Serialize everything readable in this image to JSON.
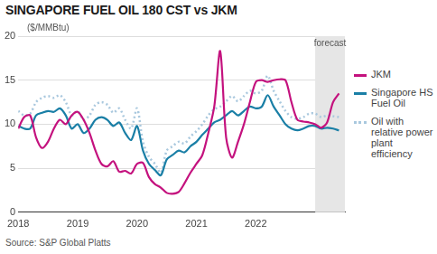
{
  "chart_data": {
    "type": "line",
    "title": "SINGAPORE FUEL OIL 180 CST vs JKM",
    "ylabel": "($/MMBtu)",
    "source": "Source: S&P Global Platts",
    "x": [
      2018.0,
      2018.1,
      2018.2,
      2018.3,
      2018.4,
      2018.5,
      2018.6,
      2018.7,
      2018.8,
      2018.9,
      2019.0,
      2019.1,
      2019.2,
      2019.3,
      2019.4,
      2019.5,
      2019.6,
      2019.7,
      2019.8,
      2019.9,
      2020.0,
      2020.1,
      2020.2,
      2020.3,
      2020.4,
      2020.5,
      2020.6,
      2020.7,
      2020.8,
      2020.9,
      2021.0,
      2021.1,
      2021.2,
      2021.3,
      2021.4,
      2021.5,
      2021.6,
      2021.7,
      2021.8,
      2021.9,
      2022.0,
      2022.1,
      2022.2,
      2022.3,
      2022.4,
      2022.5,
      2022.6,
      2022.7,
      2022.8,
      2022.9,
      2023.0,
      2023.1,
      2023.2,
      2023.3,
      2023.4
    ],
    "series": [
      {
        "name": "JKM",
        "color": "#c4127e",
        "line_style": "solid",
        "values": [
          9.5,
          10.8,
          11,
          8.5,
          7.3,
          8,
          9.5,
          10.5,
          10,
          11,
          11.4,
          10.5,
          9,
          7,
          5.5,
          5.2,
          5.8,
          4.6,
          4.7,
          4.4,
          5.5,
          5.6,
          4,
          3.2,
          2.8,
          2.2,
          2.1,
          2.3,
          3.3,
          4.5,
          5.5,
          6.5,
          9,
          12,
          18.3,
          8.5,
          6.2,
          8,
          10,
          12.5,
          14.8,
          15,
          14.8,
          15,
          15.1,
          15,
          12.5,
          10.5,
          10.3,
          10.2,
          10,
          9.6,
          10.2,
          12.5,
          13.5
        ]
      },
      {
        "name": "Singapore HS Fuel Oil",
        "color": "#1a7fa6",
        "line_style": "solid",
        "values": [
          9.8,
          9.5,
          9.5,
          11,
          11.3,
          11.5,
          11.4,
          11.8,
          11,
          9.5,
          10,
          9,
          9.5,
          10.5,
          10.8,
          10.5,
          9.8,
          10.2,
          9,
          8.2,
          9.8,
          7,
          5.5,
          4.8,
          4.2,
          6,
          6.5,
          7,
          6.8,
          7.5,
          8,
          8.8,
          9.5,
          10.2,
          10.5,
          11,
          11.5,
          11,
          11.5,
          12,
          11.8,
          12,
          13.3,
          12,
          11,
          10,
          9.5,
          9.3,
          9.5,
          9.8,
          9.8,
          9.5,
          9.6,
          9.5,
          9.3
        ]
      },
      {
        "name": "Oil with relative power plant efficiency",
        "color": "#a9c8de",
        "line_style": "dotted",
        "values": [
          11.5,
          11,
          11.2,
          12.5,
          13,
          13.2,
          13,
          13.3,
          12.5,
          11,
          11.5,
          10.5,
          11,
          12.2,
          12.5,
          12.2,
          11.3,
          11.8,
          10.5,
          9.5,
          11.8,
          8,
          6.3,
          5.5,
          4.5,
          7,
          7.5,
          8,
          7.8,
          8.6,
          9.2,
          10,
          11,
          11.7,
          12,
          12.6,
          13.2,
          12.6,
          13.2,
          13.8,
          13.5,
          13.8,
          15.5,
          13.8,
          12.6,
          11.5,
          10.8,
          10.6,
          10.8,
          11.2,
          11.2,
          10.8,
          11,
          10.9,
          10.8
        ]
      }
    ],
    "xlim": [
      2018,
      2023.5
    ],
    "xticks": [
      2018,
      2019,
      2020,
      2021,
      2022
    ],
    "ylim": [
      0,
      20
    ],
    "yticks": [
      0,
      5,
      10,
      15,
      20
    ],
    "grid": "y",
    "legend": "right",
    "annotations": [
      {
        "text": "forecast",
        "x_start": 2023.0,
        "x_end": 2023.5
      }
    ]
  }
}
